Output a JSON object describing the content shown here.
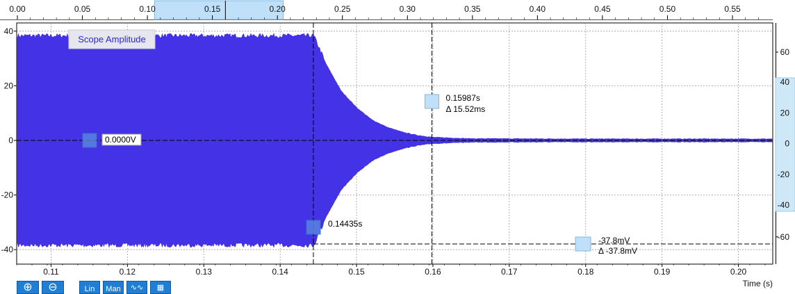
{
  "chart_data": {
    "type": "line",
    "title": "Scope Amplitude",
    "xlabel": "Time (s)",
    "ylabel": "",
    "xlim": [
      0.1055,
      0.2045
    ],
    "ylim": [
      -42,
      42
    ],
    "x_ticks": [
      "0.11",
      "0.12",
      "0.13",
      "0.14",
      "0.15",
      "0.16",
      "0.17",
      "0.18",
      "0.19",
      "0.20"
    ],
    "y_ticks": [
      "40",
      "20",
      "0",
      "-20",
      "-40"
    ],
    "series": [
      {
        "name": "",
        "color": "#4433e6",
        "x": [
          0.1055,
          0.1444,
          0.146,
          0.148,
          0.15,
          0.152,
          0.154,
          0.156,
          0.158,
          0.16,
          0.165,
          0.18,
          0.2045
        ],
        "envelope": [
          38,
          38,
          28,
          18,
          12,
          7.5,
          4.8,
          3.0,
          1.8,
          1.1,
          0.6,
          0.5,
          0.5
        ]
      }
    ],
    "overview_axis": {
      "ticks": [
        "0.00",
        "0.05",
        "0.10",
        "0.15",
        "0.20",
        "0.25",
        "0.30",
        "0.35",
        "0.40",
        "0.45",
        "0.50",
        "0.55"
      ],
      "range": [
        0,
        0.58
      ],
      "window": [
        0.1055,
        0.2045
      ],
      "marker": 0.16
    },
    "right_axis_outer": [
      "60",
      "40",
      "20",
      "0",
      "-20",
      "-40",
      "-60"
    ],
    "right_axis_inner": [
      "40",
      "20",
      "0",
      "-20",
      "-40"
    ],
    "cursors": {
      "horizontal_ref": {
        "value": 0,
        "label": "0.0000V"
      },
      "vertical_1": {
        "x": 0.14435,
        "label": "0.14435s"
      },
      "vertical_2": {
        "x": 0.15987,
        "label": "0.15987s",
        "delta": "Δ 15.52ms"
      },
      "horizontal_2": {
        "value": -37.8,
        "label": "-37.8mV",
        "delta": "Δ -37.8mV"
      }
    }
  },
  "toolbar": {
    "zoom_in": "+",
    "zoom_out": "−",
    "lin": "Lin",
    "man": "Man"
  }
}
